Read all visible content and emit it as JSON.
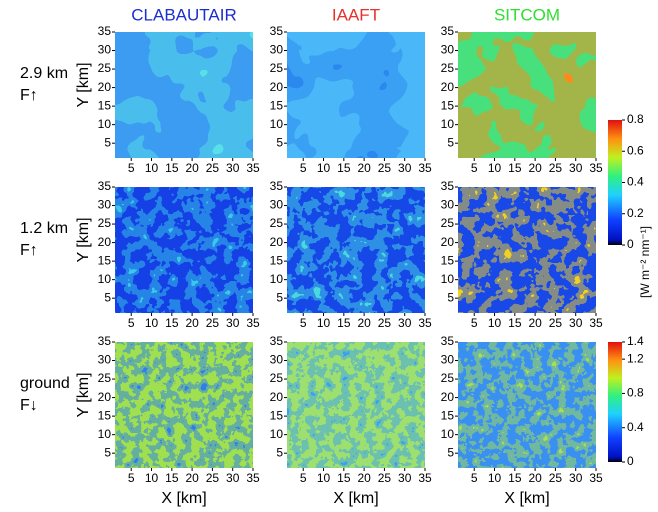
{
  "columns": [
    {
      "title": "CLABAUTAIR",
      "color": "#1a2fd0"
    },
    {
      "title": "IAAFT",
      "color": "#e8302a"
    },
    {
      "title": "SITCOM",
      "color": "#2ee02e"
    }
  ],
  "rows": [
    {
      "label": "2.9 km",
      "flux": "F↑"
    },
    {
      "label": "1.2 km",
      "flux": "F↑"
    },
    {
      "label": "ground",
      "flux": "F↓"
    }
  ],
  "x_label": "X [km]",
  "y_label": "Y [km]",
  "chart_data": [
    {
      "type": "heatmap",
      "xlim": [
        1,
        35
      ],
      "ylim": [
        1,
        35
      ],
      "xticks": [
        5,
        10,
        15,
        20,
        25,
        30,
        35
      ],
      "yticks": [
        5,
        10,
        15,
        20,
        25,
        30,
        35
      ],
      "colors": [
        "#3c9cf2",
        "#58e0e8"
      ]
    },
    {
      "type": "heatmap",
      "xlim": [
        1,
        35
      ],
      "ylim": [
        1,
        35
      ],
      "xticks": [
        5,
        10,
        15,
        20,
        25,
        30,
        35
      ],
      "yticks": [
        5,
        10,
        15,
        20,
        25,
        30,
        35
      ],
      "colors": [
        "#4ab8f8",
        "#2a88ee"
      ]
    },
    {
      "type": "heatmap",
      "xlim": [
        1,
        35
      ],
      "ylim": [
        1,
        35
      ],
      "xticks": [
        5,
        10,
        15,
        20,
        25,
        30,
        35
      ],
      "yticks": [
        5,
        10,
        15,
        20,
        25,
        30,
        35
      ],
      "colors": [
        "#48e07c",
        "#ff8a1a"
      ]
    },
    {
      "type": "heatmap",
      "xlim": [
        1,
        35
      ],
      "ylim": [
        1,
        35
      ],
      "xticks": [
        5,
        10,
        15,
        20,
        25,
        30,
        35
      ],
      "yticks": [
        5,
        10,
        15,
        20,
        25,
        30,
        35
      ],
      "colors": [
        "#1440e6",
        "#38c8e8"
      ]
    },
    {
      "type": "heatmap",
      "xlim": [
        1,
        35
      ],
      "ylim": [
        1,
        35
      ],
      "xticks": [
        5,
        10,
        15,
        20,
        25,
        30,
        35
      ],
      "yticks": [
        5,
        10,
        15,
        20,
        25,
        30,
        35
      ],
      "colors": [
        "#1648e8",
        "#48d8e0"
      ]
    },
    {
      "type": "heatmap",
      "xlim": [
        1,
        35
      ],
      "ylim": [
        1,
        35
      ],
      "xticks": [
        5,
        10,
        15,
        20,
        25,
        30,
        35
      ],
      "yticks": [
        5,
        10,
        15,
        20,
        25,
        30,
        35
      ],
      "colors": [
        "#1848e8",
        "#f0d020"
      ]
    },
    {
      "type": "heatmap",
      "xlim": [
        1,
        35
      ],
      "ylim": [
        1,
        35
      ],
      "xticks": [
        5,
        10,
        15,
        20,
        25,
        30,
        35
      ],
      "yticks": [
        5,
        10,
        15,
        20,
        25,
        30,
        35
      ],
      "colors": [
        "#a0e050",
        "#2e7ef0"
      ]
    },
    {
      "type": "heatmap",
      "xlim": [
        1,
        35
      ],
      "ylim": [
        1,
        35
      ],
      "xticks": [
        5,
        10,
        15,
        20,
        25,
        30,
        35
      ],
      "yticks": [
        5,
        10,
        15,
        20,
        25,
        30,
        35
      ],
      "colors": [
        "#9ee070",
        "#38a0f0"
      ]
    },
    {
      "type": "heatmap",
      "xlim": [
        1,
        35
      ],
      "ylim": [
        1,
        35
      ],
      "xticks": [
        5,
        10,
        15,
        20,
        25,
        30,
        35
      ],
      "yticks": [
        5,
        10,
        15,
        20,
        25,
        30,
        35
      ],
      "colors": [
        "#3a90f0",
        "#a8e050"
      ]
    }
  ],
  "colorbars": [
    {
      "ylim": [
        0,
        0.8
      ],
      "yticks": [
        0,
        0.2,
        0.4,
        0.6,
        0.8
      ]
    },
    {
      "ylim": [
        0,
        1.4
      ],
      "yticks": [
        0,
        0.4,
        0.8,
        1.2,
        1.4
      ]
    }
  ],
  "colorbar_label": "[W m⁻² nm⁻¹]"
}
